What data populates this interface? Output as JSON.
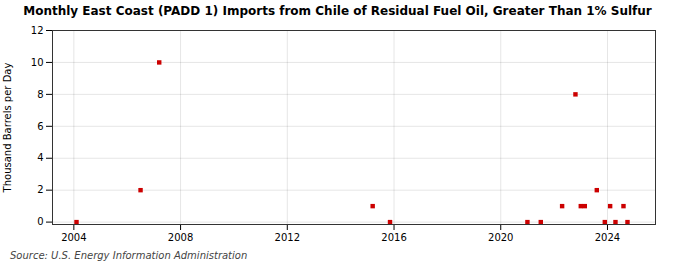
{
  "chart_data": {
    "type": "scatter",
    "title": "Monthly East Coast (PADD 1) Imports from Chile of Residual Fuel Oil, Greater Than 1% Sulfur",
    "ylabel": "Thousand Barrels per Day",
    "source": "Source: U.S. Energy Information Administration",
    "color": "#cc0000",
    "marker": "square",
    "x": [
      2004.1,
      2006.5,
      2007.2,
      2015.2,
      2015.85,
      2021.0,
      2021.5,
      2022.3,
      2022.8,
      2023.0,
      2023.15,
      2023.6,
      2023.9,
      2024.1,
      2024.3,
      2024.6,
      2024.75
    ],
    "values": [
      0.0,
      2.0,
      10.0,
      1.0,
      0.0,
      0.0,
      0.0,
      1.0,
      8.0,
      1.0,
      1.0,
      2.0,
      0.0,
      1.0,
      0.0,
      1.0,
      0.0
    ],
    "xlim": [
      2003.2,
      2025.8
    ],
    "ylim": [
      -0.15,
      12
    ],
    "xticks": [
      2004,
      2008,
      2012,
      2016,
      2020,
      2024
    ],
    "yticks": [
      0,
      2,
      4,
      6,
      8,
      10,
      12
    ],
    "grid": true
  }
}
